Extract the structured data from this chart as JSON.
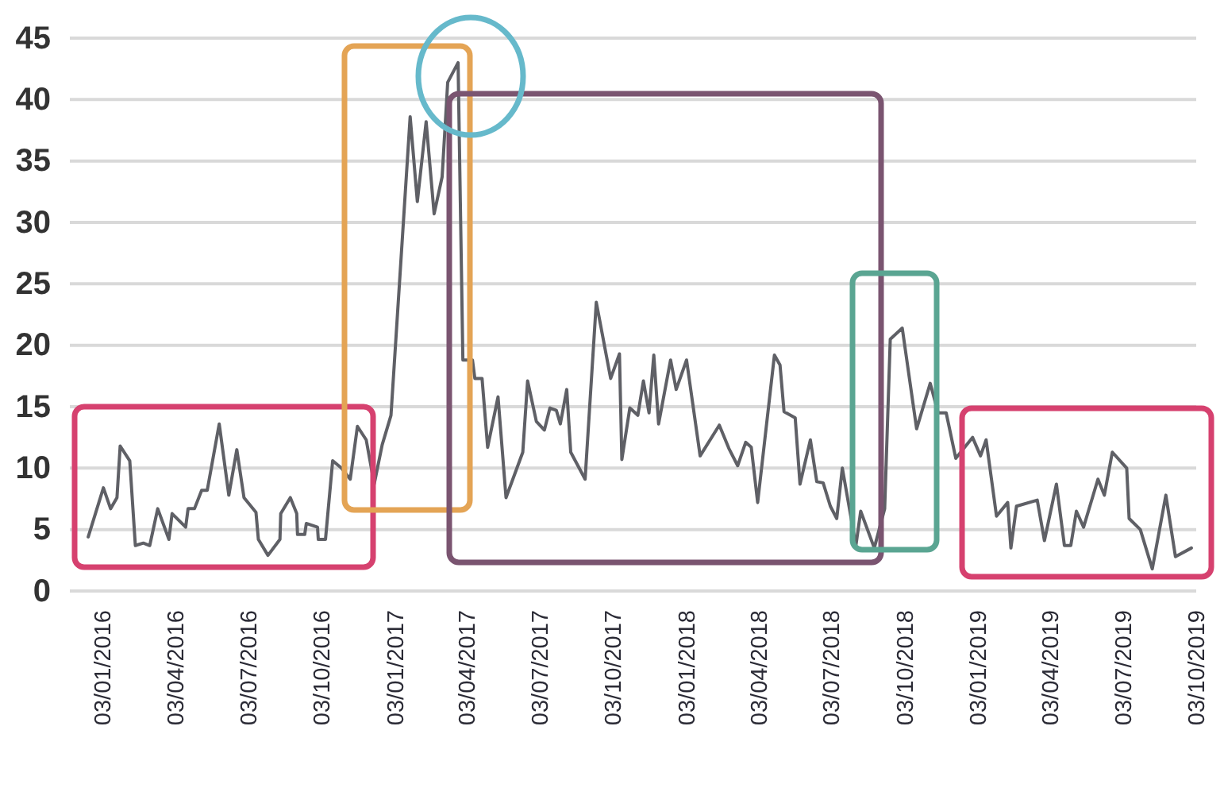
{
  "chart_data": {
    "type": "line",
    "grid": "y",
    "line_style": "solid",
    "marker": "none",
    "xlim": [
      "2015-11-23",
      "2019-10-03"
    ],
    "ylim": [
      0,
      45
    ],
    "yticks": [
      0,
      5,
      10,
      15,
      20,
      25,
      30,
      35,
      40,
      45
    ],
    "xticks": [
      {
        "value": "2016-01-03",
        "label": "03/01/2016"
      },
      {
        "value": "2016-04-03",
        "label": "03/04/2016"
      },
      {
        "value": "2016-07-03",
        "label": "03/07/2016"
      },
      {
        "value": "2016-10-03",
        "label": "03/10/2016"
      },
      {
        "value": "2017-01-03",
        "label": "03/01/2017"
      },
      {
        "value": "2017-04-03",
        "label": "03/04/2017"
      },
      {
        "value": "2017-07-03",
        "label": "03/07/2017"
      },
      {
        "value": "2017-10-03",
        "label": "03/10/2017"
      },
      {
        "value": "2018-01-03",
        "label": "03/01/2018"
      },
      {
        "value": "2018-04-03",
        "label": "03/04/2018"
      },
      {
        "value": "2018-07-03",
        "label": "03/07/2018"
      },
      {
        "value": "2018-10-03",
        "label": "03/10/2018"
      },
      {
        "value": "2019-01-03",
        "label": "03/01/2019"
      },
      {
        "value": "2019-04-03",
        "label": "03/04/2019"
      },
      {
        "value": "2019-07-03",
        "label": "03/07/2019"
      },
      {
        "value": "2019-10-03",
        "label": "03/10/2019"
      }
    ],
    "series": [
      {
        "color": "#5f6066",
        "x": [
          "2015-12-16",
          "2016-01-04",
          "2016-01-13",
          "2016-01-21",
          "2016-01-25",
          "2016-02-06",
          "2016-02-13",
          "2016-02-23",
          "2016-03-02",
          "2016-03-12",
          "2016-03-26",
          "2016-03-30",
          "2016-04-16",
          "2016-04-19",
          "2016-04-27",
          "2016-05-06",
          "2016-05-13",
          "2016-05-28",
          "2016-06-09",
          "2016-06-19",
          "2016-06-28",
          "2016-07-13",
          "2016-07-16",
          "2016-07-28",
          "2016-08-12",
          "2016-08-13",
          "2016-08-25",
          "2016-09-02",
          "2016-09-03",
          "2016-09-12",
          "2016-09-14",
          "2016-09-28",
          "2016-09-29",
          "2016-10-08",
          "2016-10-17",
          "2016-10-28",
          "2016-11-08",
          "2016-11-17",
          "2016-11-28",
          "2016-12-08",
          "2016-12-18",
          "2016-12-29",
          "2017-01-22",
          "2017-01-31",
          "2017-02-11",
          "2017-02-21",
          "2017-03-03",
          "2017-03-10",
          "2017-03-23",
          "2017-03-29",
          "2017-04-10",
          "2017-04-13",
          "2017-04-22",
          "2017-04-29",
          "2017-05-12",
          "2017-05-22",
          "2017-06-12",
          "2017-06-18",
          "2017-06-29",
          "2017-07-09",
          "2017-07-16",
          "2017-07-24",
          "2017-07-29",
          "2017-08-06",
          "2017-08-11",
          "2017-08-29",
          "2017-09-12",
          "2017-09-30",
          "2017-10-11",
          "2017-10-14",
          "2017-10-24",
          "2017-11-03",
          "2017-11-10",
          "2017-11-17",
          "2017-11-23",
          "2017-11-29",
          "2017-12-14",
          "2017-12-21",
          "2018-01-03",
          "2018-01-20",
          "2018-02-13",
          "2018-02-25",
          "2018-03-08",
          "2018-03-18",
          "2018-03-25",
          "2018-04-02",
          "2018-04-23",
          "2018-04-30",
          "2018-05-05",
          "2018-05-19",
          "2018-05-25",
          "2018-06-07",
          "2018-06-15",
          "2018-06-23",
          "2018-07-02",
          "2018-07-10",
          "2018-07-17",
          "2018-08-03",
          "2018-08-09",
          "2018-08-26",
          "2018-09-08",
          "2018-09-15",
          "2018-09-30",
          "2018-10-18",
          "2018-11-04",
          "2018-11-14",
          "2018-11-24",
          "2018-12-06",
          "2018-12-27",
          "2019-01-06",
          "2019-01-13",
          "2019-01-26",
          "2019-02-09",
          "2019-02-13",
          "2019-02-20",
          "2019-03-18",
          "2019-03-27",
          "2019-04-11",
          "2019-04-21",
          "2019-04-29",
          "2019-05-06",
          "2019-05-15",
          "2019-06-02",
          "2019-06-10",
          "2019-06-20",
          "2019-07-08",
          "2019-07-11",
          "2019-07-25",
          "2019-08-09",
          "2019-08-26",
          "2019-09-07",
          "2019-09-27"
        ],
        "values": [
          4.4,
          8.4,
          6.7,
          7.6,
          11.8,
          10.6,
          3.7,
          3.9,
          3.7,
          6.7,
          4.2,
          6.3,
          5.2,
          6.7,
          6.7,
          8.2,
          8.2,
          13.6,
          7.8,
          11.5,
          7.6,
          6.4,
          4.2,
          2.9,
          4.2,
          6.3,
          7.6,
          6.3,
          4.6,
          4.6,
          5.5,
          5.2,
          4.2,
          4.2,
          10.6,
          10.0,
          9.1,
          13.4,
          12.3,
          8.7,
          11.9,
          14.3,
          38.6,
          31.7,
          38.2,
          30.7,
          33.7,
          41.4,
          43.0,
          18.8,
          18.8,
          17.3,
          17.3,
          11.7,
          15.8,
          7.6,
          11.3,
          17.1,
          13.8,
          13.1,
          14.9,
          14.7,
          13.6,
          16.4,
          11.3,
          9.1,
          23.5,
          17.3,
          19.3,
          10.7,
          14.9,
          14.3,
          17.1,
          14.5,
          19.2,
          13.6,
          18.8,
          16.4,
          18.8,
          11.0,
          13.5,
          11.6,
          10.2,
          12.1,
          11.7,
          7.2,
          19.2,
          18.4,
          14.6,
          14.1,
          8.7,
          12.3,
          8.9,
          8.8,
          6.9,
          5.9,
          10.0,
          3.7,
          6.5,
          3.5,
          6.7,
          20.5,
          21.4,
          13.2,
          16.9,
          14.5,
          14.5,
          10.8,
          12.5,
          11.0,
          12.3,
          6.1,
          7.2,
          3.5,
          6.9,
          7.4,
          4.1,
          8.7,
          3.7,
          3.7,
          6.5,
          5.2,
          9.1,
          7.8,
          11.3,
          10.0,
          5.9,
          5.0,
          1.8,
          7.8,
          2.8,
          3.5
        ]
      }
    ]
  }
}
